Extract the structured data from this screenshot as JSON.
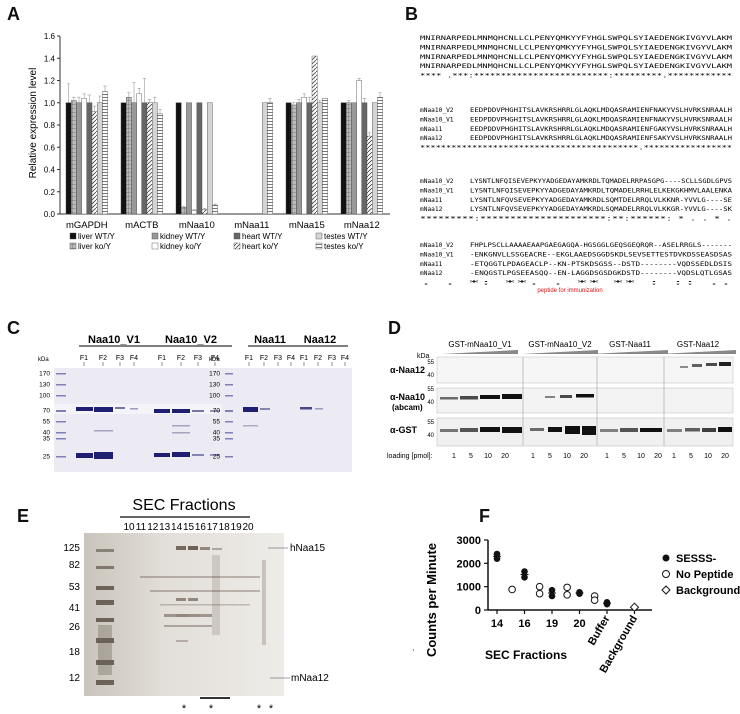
{
  "panels": {
    "A": "A",
    "B": "B",
    "C": "C",
    "D": "D",
    "E": "E",
    "F": "F"
  },
  "panel_a": {
    "ylabel": "Relative expression level",
    "yticks": [
      "0.0",
      "0.2",
      "0.4",
      "0.6",
      "0.8",
      "1.0",
      "1.2",
      "1.4",
      "1.6"
    ],
    "legend": [
      {
        "label": "liver WT/Y",
        "style": "solid-black"
      },
      {
        "label": "liver ko/Y",
        "style": "grey-grid"
      },
      {
        "label": "kidney WT/Y",
        "style": "grey"
      },
      {
        "label": "kidney ko/Y",
        "style": "white"
      },
      {
        "label": "heart WT/Y",
        "style": "dark-grey"
      },
      {
        "label": "heart ko/Y",
        "style": "hatched"
      },
      {
        "label": "testes WT/Y",
        "style": "light-grey"
      },
      {
        "label": "testes ko/Y",
        "style": "striped"
      }
    ]
  },
  "chart_data": {
    "type": "bar",
    "categories": [
      "mGAPDH",
      "mACTB",
      "mNaa10",
      "mNaa11",
      "mNaa15",
      "mNaa12"
    ],
    "ylabel": "Relative expression level",
    "ylim": [
      0,
      1.6
    ],
    "series": [
      {
        "name": "liver WT/Y",
        "values": [
          1.0,
          1.0,
          1.0,
          0.0,
          1.0,
          1.0
        ]
      },
      {
        "name": "liver ko/Y",
        "values": [
          1.02,
          1.05,
          0.06,
          0.0,
          0.98,
          1.0
        ]
      },
      {
        "name": "kidney WT/Y",
        "values": [
          1.0,
          1.0,
          1.0,
          0.0,
          1.0,
          1.0
        ]
      },
      {
        "name": "kidney ko/Y",
        "values": [
          1.04,
          1.08,
          0.03,
          0.0,
          1.05,
          1.2
        ]
      },
      {
        "name": "heart WT/Y",
        "values": [
          1.0,
          1.0,
          1.0,
          0.0,
          1.0,
          1.0
        ]
      },
      {
        "name": "heart ko/Y",
        "values": [
          0.92,
          1.0,
          0.04,
          0.0,
          1.42,
          0.7
        ]
      },
      {
        "name": "testes WT/Y",
        "values": [
          1.0,
          1.0,
          1.0,
          1.0,
          1.0,
          1.0
        ]
      },
      {
        "name": "testes ko/Y",
        "values": [
          1.1,
          0.9,
          0.08,
          1.0,
          1.04,
          1.05
        ]
      }
    ],
    "errors": [
      [
        0.17,
        0.0,
        0.0,
        0.0,
        0.0,
        0.0
      ],
      [
        0.03,
        0.04,
        0.01,
        0.0,
        0.02,
        0.02
      ],
      [
        0.05,
        0.18,
        0.0,
        0.0,
        0.03,
        0.0
      ],
      [
        0.04,
        0.05,
        0.01,
        0.0,
        0.03,
        0.02
      ],
      [
        0.07,
        0.22,
        0.0,
        0.0,
        0.05,
        0.04
      ],
      [
        0.05,
        0.03,
        0.01,
        0.0,
        0.0,
        0.03
      ],
      [
        0.06,
        0.05,
        0.0,
        0.0,
        0.02,
        0.0
      ],
      [
        0.05,
        0.04,
        0.01,
        0.04,
        0.0,
        0.04
      ]
    ]
  },
  "panel_b": {
    "blocks": [
      {
        "lines": [
          {
            "name": "",
            "seq": "MNIRNARPEDLMNMQHCNLLCLPENYQMKYYFYHGLSWPQLSYIAEDENGKIVGYVLAKM"
          },
          {
            "name": "",
            "seq": "MNIRNARPEDLMNMQHCNLLCLPENYQMKYYFYHGLSWPQLSYIAEDENGKIVGYVLAKM"
          },
          {
            "name": "",
            "seq": "MNIRNARPEDLMNMQHCNLLCLPENYQMKYYFYHGLSWPQLSYIAEDENGKIVGYVLAKM"
          },
          {
            "name": "",
            "seq": "MNIRNARPEDLMNMQHCNLLCLPENYQMKYYFYHGLSWPQLSYIAEDENGKIVGYVLAKM"
          },
          {
            "name": "",
            "seq": "**** .***:*************************:*********.************"
          }
        ]
      },
      {
        "lines": [
          {
            "name": "mNaa10_V2",
            "seq": "EEDPDDVPHGHITSLAVKRSHRRLGLAQKLMDQASRAMIENFNAKYVSLHVRKSNRAALH"
          },
          {
            "name": "mNaa10_V1",
            "seq": "EEDPDDVPHGHITSLAVKRSHRRLGLAQKLMDQASRAMIENFNAKYVSLHVRKSNRAALH"
          },
          {
            "name": "mNaa11",
            "seq": "EEDPDDVPHGHITSLAVKRSHRRLGLAQKLMDQASRAMIENFGAKYVSLHVRKSNRAALH"
          },
          {
            "name": "mNaa12",
            "seq": "EEDPDDVPHGHITSLAVKRSHRRLGLAQKLMDQASRAMIENFSAKYVSLHVRKSNRAALH"
          },
          {
            "name": "",
            "seq": "******************************************.*****************"
          }
        ]
      },
      {
        "lines": [
          {
            "name": "mNaa10_V2",
            "seq": "LYSNTLNFQISEVEPKYYADGEDAYAMKRDLTQMADELRRPASGPG----SCLLSGDLGPVS"
          },
          {
            "name": "mNaa10_V1",
            "seq": "LYSNTLNFQISEVEPKYYADGEDAYAMKRDLTQMADELRRHLELKEKGKHMVLAALENKA"
          },
          {
            "name": "mNaa11",
            "seq": "LYSNTLNFQVSEVEPKYYADGEDAYAMKRDLSQMTDELRRQLVLKKNR-YVVLG----SE"
          },
          {
            "name": "mNaa12",
            "seq": "LYSNTLNFQVSEVEPKYYADGEDAYAMKRDLSQMADELRRQLVLKKGR-YVVLG----SK"
          },
          {
            "name": "",
            "seq": "*********:*********************:**:******: *  .  .  *     ."
          }
        ]
      },
      {
        "lines": [
          {
            "name": "mNaa10_V2",
            "seq": "FHPLPSCLLAAAAEAAPGAEGAGQA-HGSGGLGEQSGEQRQR--ASELRRGLS-------"
          },
          {
            "name": "mNaa10_V1",
            "seq": "-ENKGNVLLSSGEACRE--EKGLAAEDSGGDSKDLSEVSETTESTDVKDSSEASDSAS"
          },
          {
            "name": "mNaa11",
            "seq": "-ETQGGTLPDAGEACLP--KN-PTSKDSGSS--DSTD--------VQDSSEDLDSIS"
          },
          {
            "name": "mNaa12",
            "seq": "-ENQGSTLPGSEEASQQ--EN-LAGGDSGSDGKDSTD--------VQDSLQTLGSAS"
          },
          {
            "name": "",
            "seq": "  .   .  *:  **.        .  **      **      :        ::  .. "
          }
        ]
      }
    ],
    "peptide_label": "peptide for immunization"
  },
  "panel_c": {
    "kda_label": "kDa",
    "gel1": {
      "groups": [
        "Naa10_V1",
        "Naa10_V2"
      ],
      "lanes": [
        "F1",
        "F2",
        "F3",
        "F4",
        "F1",
        "F2",
        "F3",
        "F4"
      ]
    },
    "gel2": {
      "groups": [
        "Naa11",
        "Naa12"
      ],
      "lanes": [
        "F1",
        "F2",
        "F3",
        "F4",
        "F1",
        "F2",
        "F3",
        "F4"
      ]
    },
    "markers": [
      "170",
      "130",
      "100",
      "70",
      "55",
      "40",
      "35",
      "25"
    ]
  },
  "panel_d": {
    "kda_label": "kDa",
    "columns": [
      "GST-mNaa10_V1",
      "GST-mNaa10_V2",
      "GST-Naa11",
      "GST-Naa12"
    ],
    "rows": [
      {
        "label": "α-Naa12",
        "markers": [
          "55",
          "40"
        ]
      },
      {
        "label": "α-Naa10",
        "sublabel": "(abcam)",
        "markers": [
          "55",
          "40"
        ]
      },
      {
        "label": "α-GST",
        "markers": [
          "55",
          "40"
        ]
      }
    ],
    "loading_label": "loading [pmol]:",
    "loading_values": [
      "1",
      "5",
      "10",
      "20"
    ]
  },
  "panel_e": {
    "title": "SEC Fractions",
    "fractions": [
      "10",
      "11",
      "12",
      "13",
      "14",
      "15",
      "16",
      "17",
      "18",
      "19",
      "20"
    ],
    "markers": [
      "125",
      "82",
      "53",
      "41",
      "26",
      "18",
      "12"
    ],
    "right_labels": [
      "hNaa15",
      "mNaa12"
    ],
    "stars": [
      "*",
      "*",
      "*",
      "*"
    ]
  },
  "panel_f": {
    "ylabel": "Counts per Minute",
    "xlabel": "SEC Fractions",
    "yticks": [
      "0",
      "1000",
      "2000",
      "3000"
    ],
    "xticks": [
      "14",
      "16",
      "19",
      "20",
      "Buffer",
      "Background"
    ],
    "legend": [
      {
        "label": "SESSS-",
        "marker": "filled-circle"
      },
      {
        "label": "No Peptide",
        "marker": "open-circle"
      },
      {
        "label": "Background",
        "marker": "open-diamond"
      }
    ],
    "scatter": {
      "type": "scatter",
      "ylim": [
        0,
        3000
      ],
      "filled": [
        [
          0,
          2400
        ],
        [
          0,
          2200
        ],
        [
          1,
          1650
        ],
        [
          1,
          1400
        ],
        [
          2,
          850
        ],
        [
          2,
          600
        ],
        [
          3,
          760
        ],
        [
          3,
          700
        ],
        [
          4,
          330
        ],
        [
          4,
          250
        ]
      ],
      "open": [
        [
          0.55,
          880
        ],
        [
          1.55,
          1000
        ],
        [
          1.55,
          700
        ],
        [
          2.55,
          970
        ],
        [
          2.55,
          650
        ],
        [
          3.55,
          600
        ],
        [
          3.55,
          420
        ]
      ],
      "diamond": [
        [
          5,
          120
        ]
      ]
    }
  },
  "misc": {
    "comma": ","
  }
}
